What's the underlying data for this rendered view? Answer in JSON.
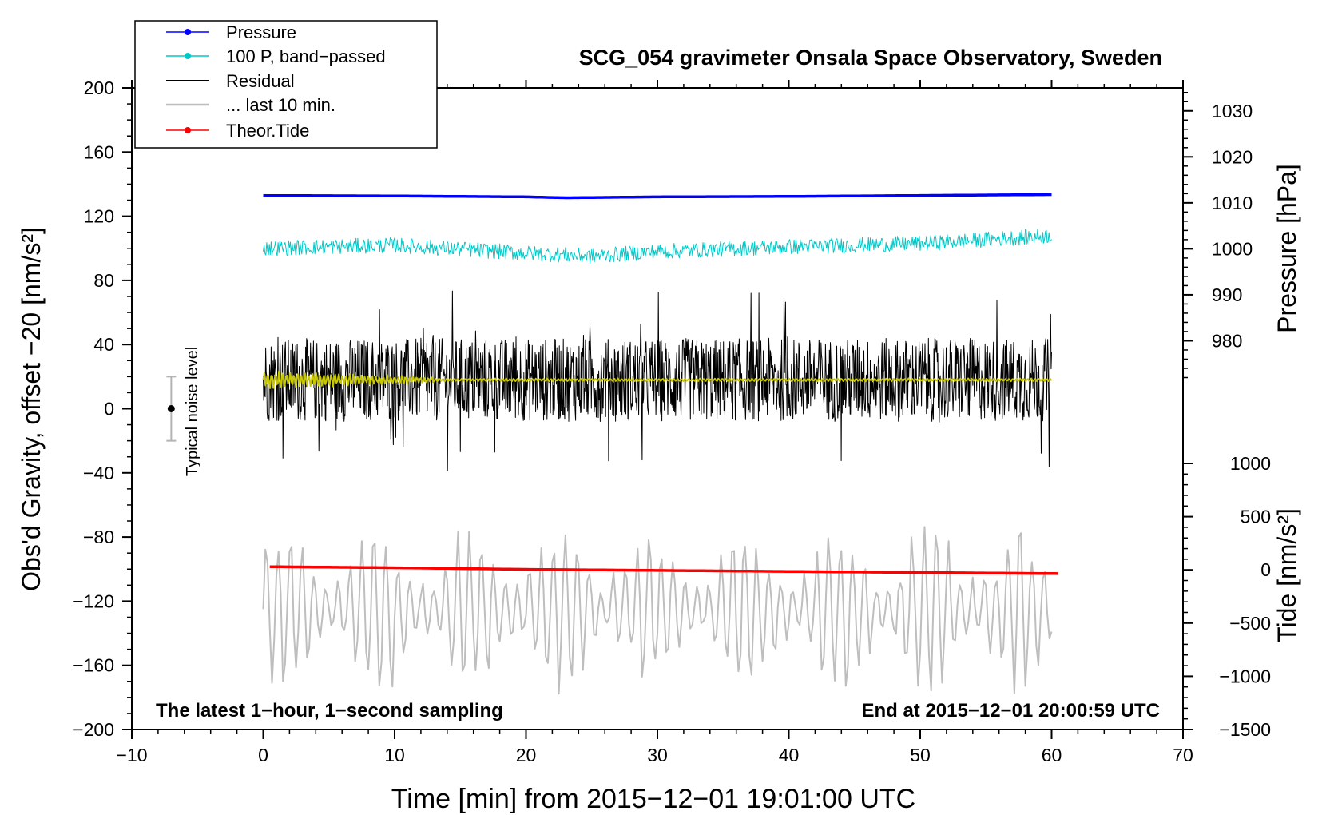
{
  "chart_data": {
    "type": "line",
    "title": "SCG_054 gravimeter Onsala Space Observatory, Sweden",
    "xlabel": "Time [min] from 2015−12−01 19:01:00 UTC",
    "ylabel_left": "Obs'd Gravity, offset −20 [nm/s²]",
    "ylabel_right_top": "Pressure [hPa]",
    "ylabel_right_bottom": "Tide [nm/s²]",
    "xlim": [
      -10,
      70
    ],
    "ylim": [
      -200,
      200
    ],
    "pressure_lim": [
      970,
      1035
    ],
    "tide_lim": [
      -1500,
      1000
    ],
    "x_ticks": [
      -10,
      0,
      10,
      20,
      30,
      40,
      50,
      60,
      70
    ],
    "x_tick_labels": [
      "−10",
      "0",
      "10",
      "20",
      "30",
      "40",
      "50",
      "60",
      "70"
    ],
    "y_ticks": [
      -200,
      -160,
      -120,
      -80,
      -40,
      0,
      40,
      80,
      120,
      160,
      200
    ],
    "y_tick_labels": [
      "−200",
      "−160",
      "−120",
      "−80",
      "−40",
      "0",
      "40",
      "80",
      "120",
      "160",
      "200"
    ],
    "pressure_ticks": [
      980,
      990,
      1000,
      1010,
      1020,
      1030
    ],
    "pressure_tick_labels": [
      "980",
      "990",
      "1000",
      "1010",
      "1020",
      "1030"
    ],
    "tide_ticks": [
      -1500,
      -1000,
      -500,
      0,
      500,
      1000
    ],
    "tide_tick_labels": [
      "−1500",
      "−1000",
      "−500",
      "0",
      "500",
      "1000"
    ],
    "legend": [
      {
        "label": "Pressure",
        "color": "#0000ff",
        "marker": true
      },
      {
        "label": "100 P, band−passed",
        "color": "#00c8c8",
        "marker": true
      },
      {
        "label": "Residual",
        "color": "#000000",
        "marker": false
      },
      {
        "label": "... last 10 min.",
        "color": "#bebebe",
        "marker": false
      },
      {
        "label": "Theor.Tide",
        "color": "#ff0000",
        "marker": true
      }
    ],
    "series": [
      {
        "name": "Pressure",
        "axis": "pressure",
        "color": "#0000ff",
        "x": [
          0,
          10,
          20,
          23,
          30,
          40,
          50,
          60
        ],
        "values": [
          1011.6,
          1011.5,
          1011.3,
          1011.1,
          1011.3,
          1011.4,
          1011.6,
          1011.8
        ]
      },
      {
        "name": "100 P, band-passed",
        "axis": "gravity",
        "color": "#00c8c8",
        "x": [
          0,
          10,
          20,
          25,
          30,
          40,
          50,
          60
        ],
        "values": [
          100,
          102,
          97,
          95,
          98,
          101,
          103,
          108
        ],
        "noise_amplitude": 8
      },
      {
        "name": "Residual",
        "axis": "gravity",
        "color": "#000000",
        "x": [
          0,
          10,
          20,
          30,
          40,
          50,
          60
        ],
        "values": [
          18,
          18,
          18,
          18,
          18,
          18,
          18
        ],
        "noise_amplitude": 40
      },
      {
        "name": "Residual (smoothed)",
        "axis": "gravity",
        "color": "#c8c800",
        "x": [
          0,
          10,
          20,
          30,
          40,
          50,
          60
        ],
        "values": [
          18,
          18,
          18,
          18,
          18,
          18,
          18
        ]
      },
      {
        "name": "... last 10 min.",
        "axis": "gravity",
        "color": "#bebebe",
        "x": [
          0,
          60
        ],
        "values": [
          -125,
          -125
        ],
        "noise_amplitude": 40
      },
      {
        "name": "Theor.Tide",
        "axis": "tide",
        "color": "#ff0000",
        "x": [
          0.5,
          10,
          20,
          30,
          40,
          50,
          60.5
        ],
        "values": [
          30,
          20,
          5,
          -5,
          -15,
          -25,
          -35
        ]
      }
    ],
    "noise_level": {
      "label": "Typical noise level",
      "x": -7,
      "center": 0,
      "range": [
        -20,
        20
      ]
    },
    "annotations": {
      "bottom_left": "The latest 1−hour, 1−second sampling",
      "bottom_right": "End at 2015−12−01 20:00:59 UTC"
    }
  }
}
